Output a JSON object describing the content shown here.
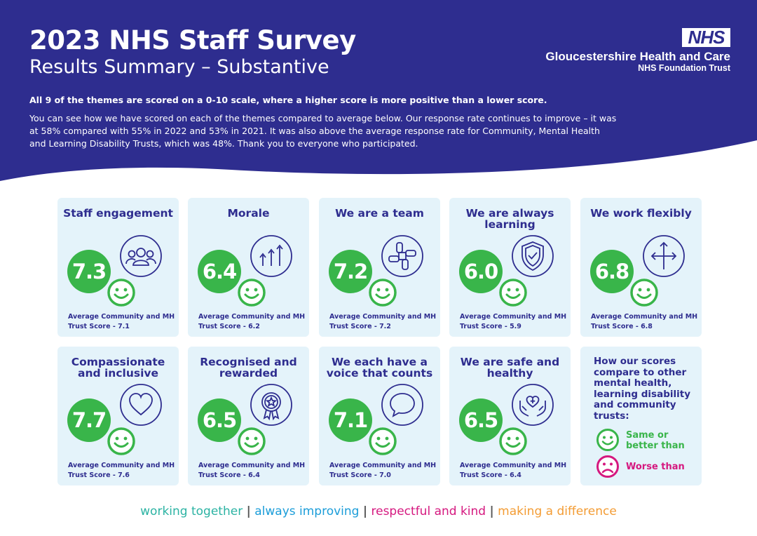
{
  "header": {
    "title": "2023 NHS Staff Survey",
    "subtitle": "Results Summary – Substantive",
    "logo_text": "NHS",
    "org_name": "Gloucestershire Health and Care",
    "org_sub": "NHS Foundation Trust",
    "intro_bold": "All 9 of the themes are scored on a 0-10 scale, where a higher score is more positive than a lower score.",
    "intro": "You can see how we have scored on each of the themes compared to average below. Our response rate continues to improve – it was at 58% compared with 55% in 2022 and 53% in 2021. It was also above the average response rate for Community, Mental Health and Learning Disability Trusts, which was 48%. Thank you to everyone who participated."
  },
  "colors": {
    "navy": "#2e2d8f",
    "green": "#39b54a",
    "card_bg": "#e4f3fa",
    "magenta": "#d5187f"
  },
  "themes": [
    {
      "title": "Staff engagement",
      "score": "7.3",
      "avg": "Average Community and MH Trust Score - 7.1",
      "icon": "people-group-icon"
    },
    {
      "title": "Morale",
      "score": "6.4",
      "avg": "Average Community and MH Trust Score - 6.2",
      "icon": "arrows-up-icon"
    },
    {
      "title": "We are a team",
      "score": "7.2",
      "avg": "Average Community and MH Trust Score - 7.2",
      "icon": "team-hands-icon"
    },
    {
      "title": "We are always learning",
      "score": "6.0",
      "avg": "Average Community and MH Trust Score - 5.9",
      "icon": "shield-check-icon"
    },
    {
      "title": "We work flexibly",
      "score": "6.8",
      "avg": "Average Community and MH Trust Score - 6.8",
      "icon": "direction-arrows-icon"
    },
    {
      "title": "Compassionate and inclusive",
      "score": "7.7",
      "avg": "Average Community and MH Trust Score - 7.6",
      "icon": "heart-icon"
    },
    {
      "title": "Recognised and rewarded",
      "score": "6.5",
      "avg": "Average Community and MH Trust Score - 6.4",
      "icon": "award-rosette-icon"
    },
    {
      "title": "We each have a voice that counts",
      "score": "7.1",
      "avg": "Average Community and MH Trust Score - 7.0",
      "icon": "speech-bubble-icon"
    },
    {
      "title": "We are safe and healthy",
      "score": "6.5",
      "avg": "Average Community and MH Trust Score - 6.4",
      "icon": "hands-heart-icon"
    }
  ],
  "legend": {
    "title": "How our scores compare to other mental health, learning disability and community trusts:",
    "same": "Same or better than",
    "worse": "Worse than"
  },
  "values": {
    "v1": "working together",
    "v2": "always improving",
    "v3": "respectful and kind",
    "v4": "making a difference",
    "sep": "|",
    "c1": "#2bb3a3",
    "c2": "#1b9dd9",
    "c3": "#d5187f",
    "c4": "#f39c34"
  }
}
